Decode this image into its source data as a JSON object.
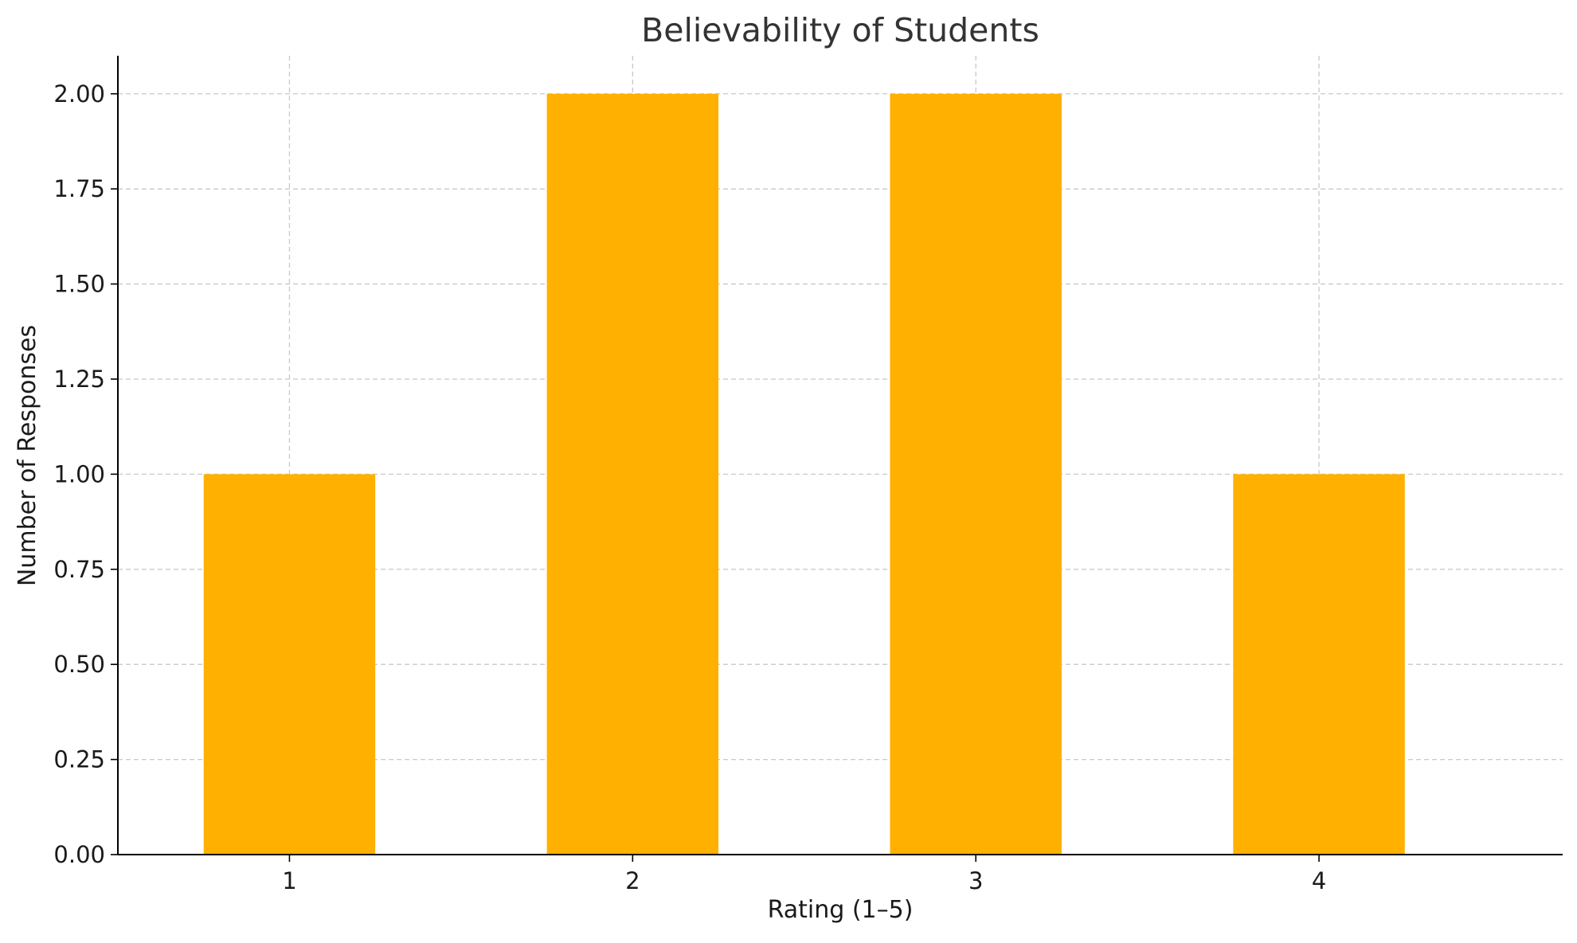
{
  "chart_data": {
    "type": "bar",
    "title": "Believability of Students",
    "xlabel": "Rating (1–5)",
    "ylabel": "Number of Responses",
    "categories": [
      "1",
      "2",
      "3",
      "4"
    ],
    "values": [
      1,
      2,
      2,
      1
    ],
    "ylim": [
      0,
      2.1
    ],
    "yticks": [
      0,
      0.25,
      0.5,
      0.75,
      1.0,
      1.25,
      1.5,
      1.75,
      2.0
    ],
    "ytick_labels": [
      "0.00",
      "0.25",
      "0.50",
      "0.75",
      "1.00",
      "1.25",
      "1.50",
      "1.75",
      "2.00"
    ],
    "grid": true,
    "bar_color": "#FFB000",
    "series": [
      {
        "name": "Responses",
        "values": [
          1,
          2,
          2,
          1
        ]
      }
    ]
  }
}
